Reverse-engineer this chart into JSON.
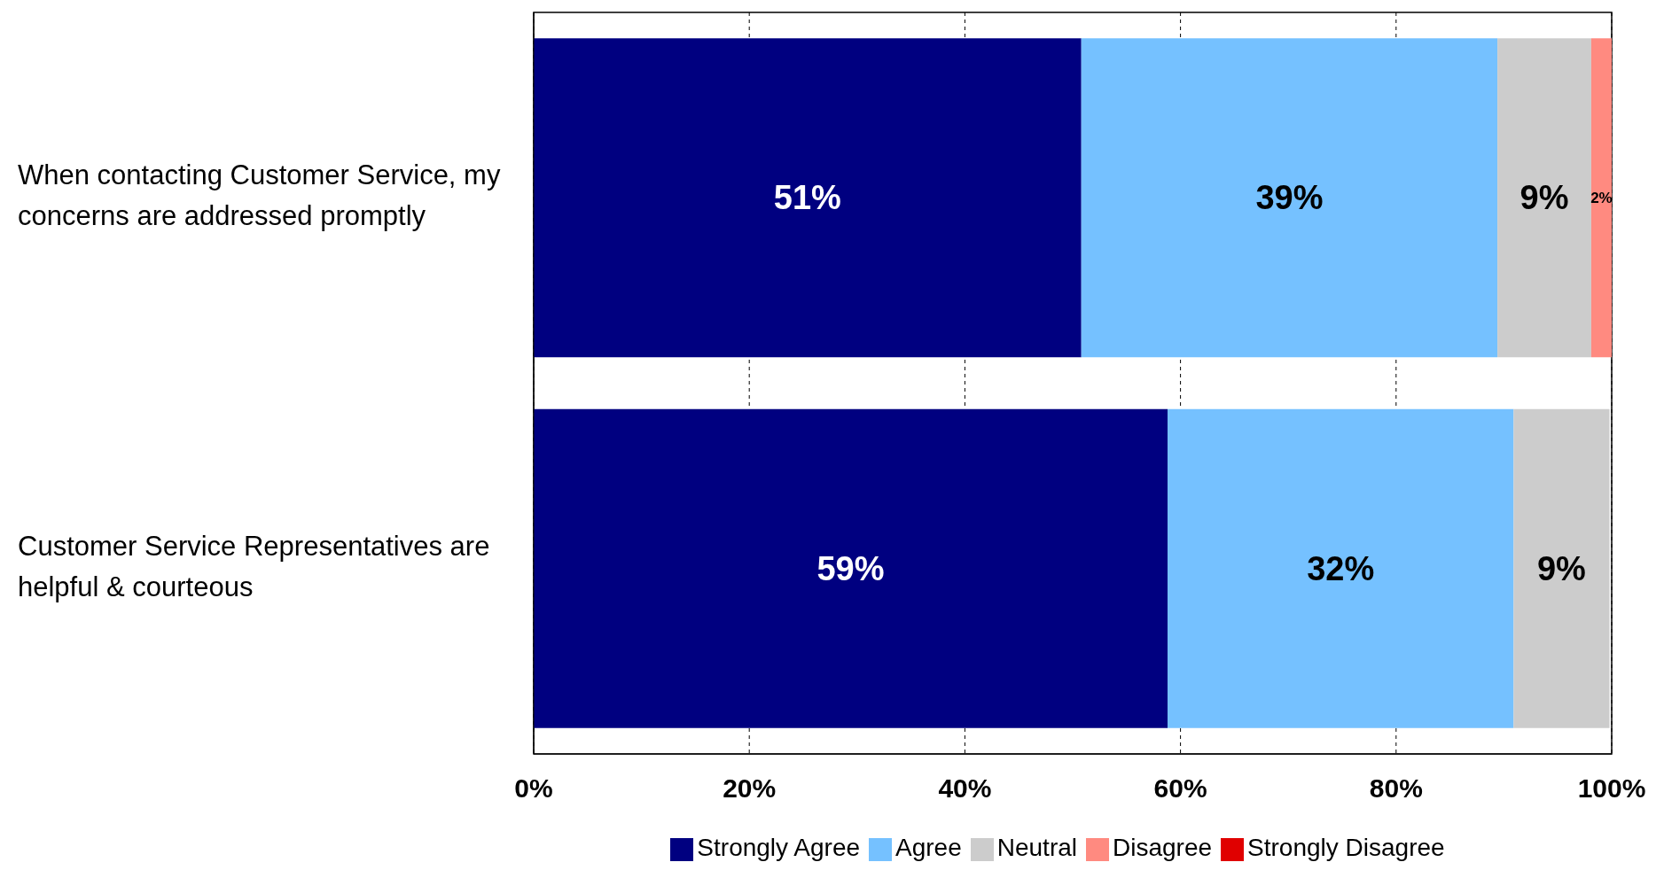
{
  "chart_data": {
    "type": "bar",
    "orientation": "horizontal",
    "stacked": true,
    "categories": [
      "When contacting Customer Service, my concerns are addressed promptly",
      "Customer Service Representatives are helpful & courteous"
    ],
    "series": [
      {
        "name": "Strongly Agree",
        "color": "#000080",
        "values": [
          50.8,
          58.8
        ],
        "value_labels": [
          "51%",
          "59%"
        ]
      },
      {
        "name": "Agree",
        "color": "#75c1ff",
        "values": [
          38.6,
          32.1
        ],
        "value_labels": [
          "39%",
          "32%"
        ]
      },
      {
        "name": "Neutral",
        "color": "#cccccc",
        "values": [
          8.7,
          8.9
        ],
        "value_labels": [
          "9%",
          "9%"
        ]
      },
      {
        "name": "Disagree",
        "color": "#ff8a80",
        "values": [
          1.9,
          null
        ],
        "value_labels": [
          "2%",
          null
        ]
      },
      {
        "name": "Strongly Disagree",
        "color": "#e00000",
        "values": [
          null,
          null
        ],
        "value_labels": [
          null,
          null
        ]
      }
    ],
    "xlim": [
      0,
      100
    ],
    "xticks": [
      {
        "value": 0,
        "label": "0%"
      },
      {
        "value": 20,
        "label": "20%"
      },
      {
        "value": 40,
        "label": "40%"
      },
      {
        "value": 60,
        "label": "60%"
      },
      {
        "value": 80,
        "label": "80%"
      },
      {
        "value": 100,
        "label": "100%"
      }
    ],
    "grid": "x",
    "legend": "bottom"
  }
}
